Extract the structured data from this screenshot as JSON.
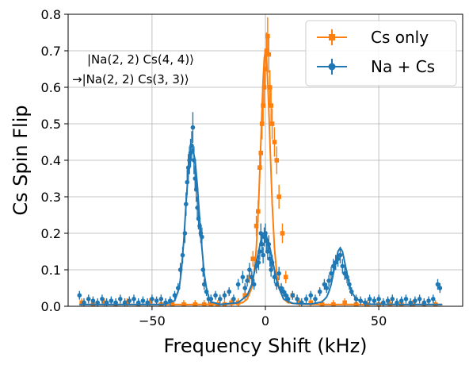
{
  "chart_data": {
    "type": "scatter",
    "title": "",
    "xlabel": "Frequency Shift (kHz)",
    "ylabel": "Cs Spin Flip",
    "xlim": [
      -87,
      87
    ],
    "ylim": [
      0,
      0.8
    ],
    "xticks": [
      -50,
      0,
      50
    ],
    "yticks": [
      0.0,
      0.1,
      0.2,
      0.3,
      0.4,
      0.5,
      0.6,
      0.7,
      0.8
    ],
    "xtick_labels": [
      "−50",
      "0",
      "50"
    ],
    "ytick_labels": [
      "0.0",
      "0.1",
      "0.2",
      "0.3",
      "0.4",
      "0.5",
      "0.6",
      "0.7",
      "0.8"
    ],
    "grid": true,
    "legend_position": "top-right",
    "annotation": {
      "line1": "|Na(2, 2) Cs(4, 4)⟩",
      "line2": "→|Na(2, 2) Cs(3, 3)⟩"
    },
    "series": [
      {
        "name": "Cs only",
        "color": "#ff7f0e",
        "marker": "square",
        "x": [
          -81,
          -76,
          -71,
          -66,
          -61,
          -56,
          -51,
          -46,
          -41,
          -36,
          -31,
          -27,
          -24,
          -21,
          -18,
          -15,
          -12,
          -9,
          -7,
          -5.5,
          -4,
          -3.2,
          -2.5,
          -2,
          -1.5,
          -1,
          -0.5,
          0,
          0.5,
          1,
          1.5,
          2,
          2.5,
          3,
          4,
          5,
          6,
          7.5,
          9,
          12,
          15,
          20,
          25,
          30,
          35,
          40,
          45,
          50,
          55,
          60,
          65,
          70,
          75
        ],
        "y": [
          0.01,
          0.005,
          0.01,
          0.005,
          0.01,
          0.005,
          0.01,
          0.005,
          0.005,
          0.005,
          0.005,
          0.005,
          0.005,
          0.005,
          0.005,
          0.01,
          0.01,
          0.03,
          0.08,
          0.13,
          0.22,
          0.26,
          0.38,
          0.42,
          0.5,
          0.55,
          0.6,
          0.65,
          0.7,
          0.74,
          0.69,
          0.6,
          0.55,
          0.5,
          0.45,
          0.4,
          0.3,
          0.2,
          0.08,
          0.03,
          0.01,
          0.01,
          0.005,
          0.005,
          0.01,
          0.005,
          0.005,
          0.005,
          0.005,
          0.005,
          0.005,
          0.005,
          0.005
        ],
        "fit_x": [
          -82,
          -30,
          -15,
          -10,
          -8,
          -6,
          -5,
          -4,
          -3,
          -2,
          -1.5,
          -1,
          -0.5,
          0,
          0.5,
          1,
          1.5,
          2,
          3,
          4,
          5,
          6,
          8,
          10,
          15,
          30,
          78
        ],
        "fit_y": [
          0.005,
          0.005,
          0.006,
          0.01,
          0.02,
          0.05,
          0.09,
          0.16,
          0.28,
          0.45,
          0.54,
          0.62,
          0.68,
          0.7,
          0.68,
          0.62,
          0.54,
          0.45,
          0.28,
          0.16,
          0.09,
          0.05,
          0.02,
          0.01,
          0.006,
          0.005,
          0.005
        ]
      },
      {
        "name": "Na + Cs",
        "color": "#1f77b4",
        "marker": "circle",
        "x": [
          -82,
          -80,
          -78,
          -76,
          -74,
          -72,
          -70,
          -68,
          -66,
          -64,
          -62,
          -60,
          -58,
          -56,
          -54,
          -52,
          -50,
          -48,
          -46,
          -44,
          -42,
          -40,
          -38.5,
          -37.5,
          -36.5,
          -35.5,
          -35,
          -34.5,
          -34,
          -33.5,
          -33,
          -32.5,
          -32,
          -31.5,
          -31,
          -30.5,
          -30,
          -29.5,
          -29,
          -28.5,
          -28,
          -27.5,
          -27,
          -26,
          -25,
          -24,
          -22,
          -20,
          -18,
          -16,
          -14,
          -12,
          -10,
          -9,
          -8,
          -7,
          -6,
          -5,
          -4,
          -3,
          -2.5,
          -2,
          -1.5,
          -1,
          -0.5,
          0,
          0.5,
          1,
          1.5,
          2,
          2.5,
          3,
          4,
          5,
          6,
          7,
          8,
          9,
          10,
          12,
          14,
          16,
          18,
          20,
          22,
          24,
          26,
          27,
          28,
          29,
          30,
          31,
          32,
          33,
          34,
          35,
          36,
          37,
          38,
          40,
          42,
          44,
          46,
          48,
          50,
          52,
          54,
          56,
          58,
          60,
          62,
          64,
          66,
          68,
          70,
          72,
          74,
          76,
          77
        ],
        "y": [
          0.03,
          0.01,
          0.02,
          0.015,
          0.01,
          0.02,
          0.01,
          0.015,
          0.01,
          0.02,
          0.01,
          0.015,
          0.02,
          0.01,
          0.015,
          0.01,
          0.02,
          0.015,
          0.02,
          0.01,
          0.015,
          0.03,
          0.05,
          0.1,
          0.14,
          0.2,
          0.28,
          0.34,
          0.38,
          0.4,
          0.42,
          0.44,
          0.49,
          0.4,
          0.35,
          0.32,
          0.27,
          0.24,
          0.22,
          0.2,
          0.19,
          0.1,
          0.06,
          0.04,
          0.02,
          0.02,
          0.03,
          0.02,
          0.03,
          0.04,
          0.02,
          0.06,
          0.08,
          0.05,
          0.07,
          0.1,
          0.08,
          0.06,
          0.11,
          0.12,
          0.15,
          0.2,
          0.17,
          0.14,
          0.19,
          0.2,
          0.18,
          0.15,
          0.17,
          0.13,
          0.1,
          0.12,
          0.08,
          0.06,
          0.09,
          0.05,
          0.04,
          0.03,
          0.02,
          0.03,
          0.02,
          0.01,
          0.02,
          0.03,
          0.02,
          0.04,
          0.06,
          0.05,
          0.07,
          0.09,
          0.11,
          0.12,
          0.13,
          0.14,
          0.11,
          0.09,
          0.08,
          0.06,
          0.04,
          0.02,
          0.015,
          0.01,
          0.02,
          0.015,
          0.02,
          0.01,
          0.015,
          0.02,
          0.01,
          0.015,
          0.02,
          0.01,
          0.015,
          0.02,
          0.01,
          0.015,
          0.02,
          0.06,
          0.05
        ],
        "fit_x": [
          -82,
          -45,
          -40,
          -38,
          -37,
          -36,
          -35,
          -34,
          -33,
          -32,
          -31,
          -30,
          -29,
          -28,
          -27,
          -26,
          -25,
          -24,
          -20,
          -12,
          -8,
          -6,
          -5,
          -4,
          -3,
          -2,
          -1.5,
          -1,
          -0.5,
          0,
          0.5,
          1,
          2,
          3,
          4,
          5,
          6,
          8,
          12,
          20,
          25,
          27,
          28,
          29,
          30,
          31,
          32,
          33,
          34,
          35,
          36,
          37,
          38,
          40,
          45,
          60,
          78
        ],
        "fit_y": [
          0.005,
          0.005,
          0.015,
          0.05,
          0.1,
          0.18,
          0.28,
          0.37,
          0.42,
          0.43,
          0.4,
          0.33,
          0.24,
          0.16,
          0.09,
          0.05,
          0.025,
          0.012,
          0.005,
          0.01,
          0.03,
          0.06,
          0.09,
          0.12,
          0.15,
          0.18,
          0.19,
          0.2,
          0.2,
          0.2,
          0.19,
          0.18,
          0.16,
          0.13,
          0.1,
          0.07,
          0.05,
          0.02,
          0.008,
          0.006,
          0.012,
          0.025,
          0.04,
          0.06,
          0.09,
          0.12,
          0.15,
          0.16,
          0.15,
          0.12,
          0.09,
          0.06,
          0.04,
          0.02,
          0.006,
          0.005,
          0.005
        ]
      }
    ]
  }
}
